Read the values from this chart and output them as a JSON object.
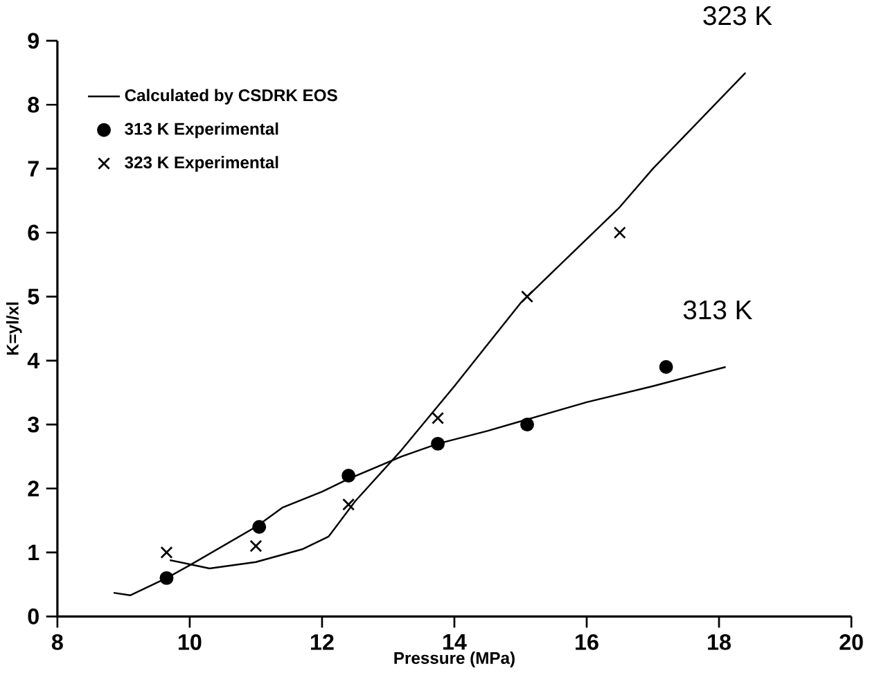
{
  "chart_data": {
    "type": "line",
    "xlabel": "Pressure (MPa)",
    "ylabel": "K=yl/xl",
    "xlim": [
      8,
      20
    ],
    "xticks": [
      8,
      10,
      12,
      14,
      16,
      18,
      20
    ],
    "ylim": [
      0,
      9
    ],
    "yticks": [
      0,
      1,
      2,
      3,
      4,
      5,
      6,
      7,
      8,
      9
    ],
    "grid": false,
    "legend": "top left",
    "series": [
      {
        "name": "Calculated by CSDRK EOS",
        "color": "#000000",
        "marker": "none",
        "x": [
          8.85,
          9.1,
          9.65,
          10.0,
          10.5,
          11.0,
          11.4,
          12.0,
          12.4,
          13.2,
          13.75,
          14.5,
          15.0,
          16.0,
          17.0,
          18.1
        ],
        "values": [
          0.37,
          0.33,
          0.6,
          0.8,
          1.1,
          1.4,
          1.7,
          1.95,
          2.15,
          2.5,
          2.7,
          2.9,
          3.05,
          3.35,
          3.6,
          3.9
        ]
      },
      {
        "color": "#000000",
        "marker": "none",
        "x": [
          9.7,
          10.3,
          11.0,
          11.7,
          12.1,
          12.5,
          13.2,
          14.0,
          15.0,
          15.5,
          16.5,
          17.0,
          18.4
        ],
        "values": [
          0.88,
          0.75,
          0.85,
          1.05,
          1.25,
          1.8,
          2.6,
          3.6,
          4.9,
          5.4,
          6.4,
          7.0,
          8.5
        ]
      },
      {
        "name": "313 K Experimental",
        "color": "#000000",
        "type": "scatter",
        "marker": "circle",
        "x": [
          9.65,
          11.05,
          12.4,
          13.75,
          15.1,
          17.2
        ],
        "values": [
          0.6,
          1.4,
          2.2,
          2.7,
          3.0,
          3.9
        ]
      },
      {
        "name": "323 K Experimental",
        "color": "#000000",
        "type": "scatter",
        "marker": "cross",
        "x": [
          9.65,
          11.0,
          12.4,
          13.75,
          15.1,
          16.5
        ],
        "values": [
          1.0,
          1.1,
          1.75,
          3.1,
          5.0,
          6.0
        ]
      }
    ],
    "annotations": [
      {
        "text": "323 K",
        "x": 18.4,
        "y": 8.5
      },
      {
        "text": "313 K",
        "x": 18.1,
        "y": 3.9
      }
    ]
  }
}
